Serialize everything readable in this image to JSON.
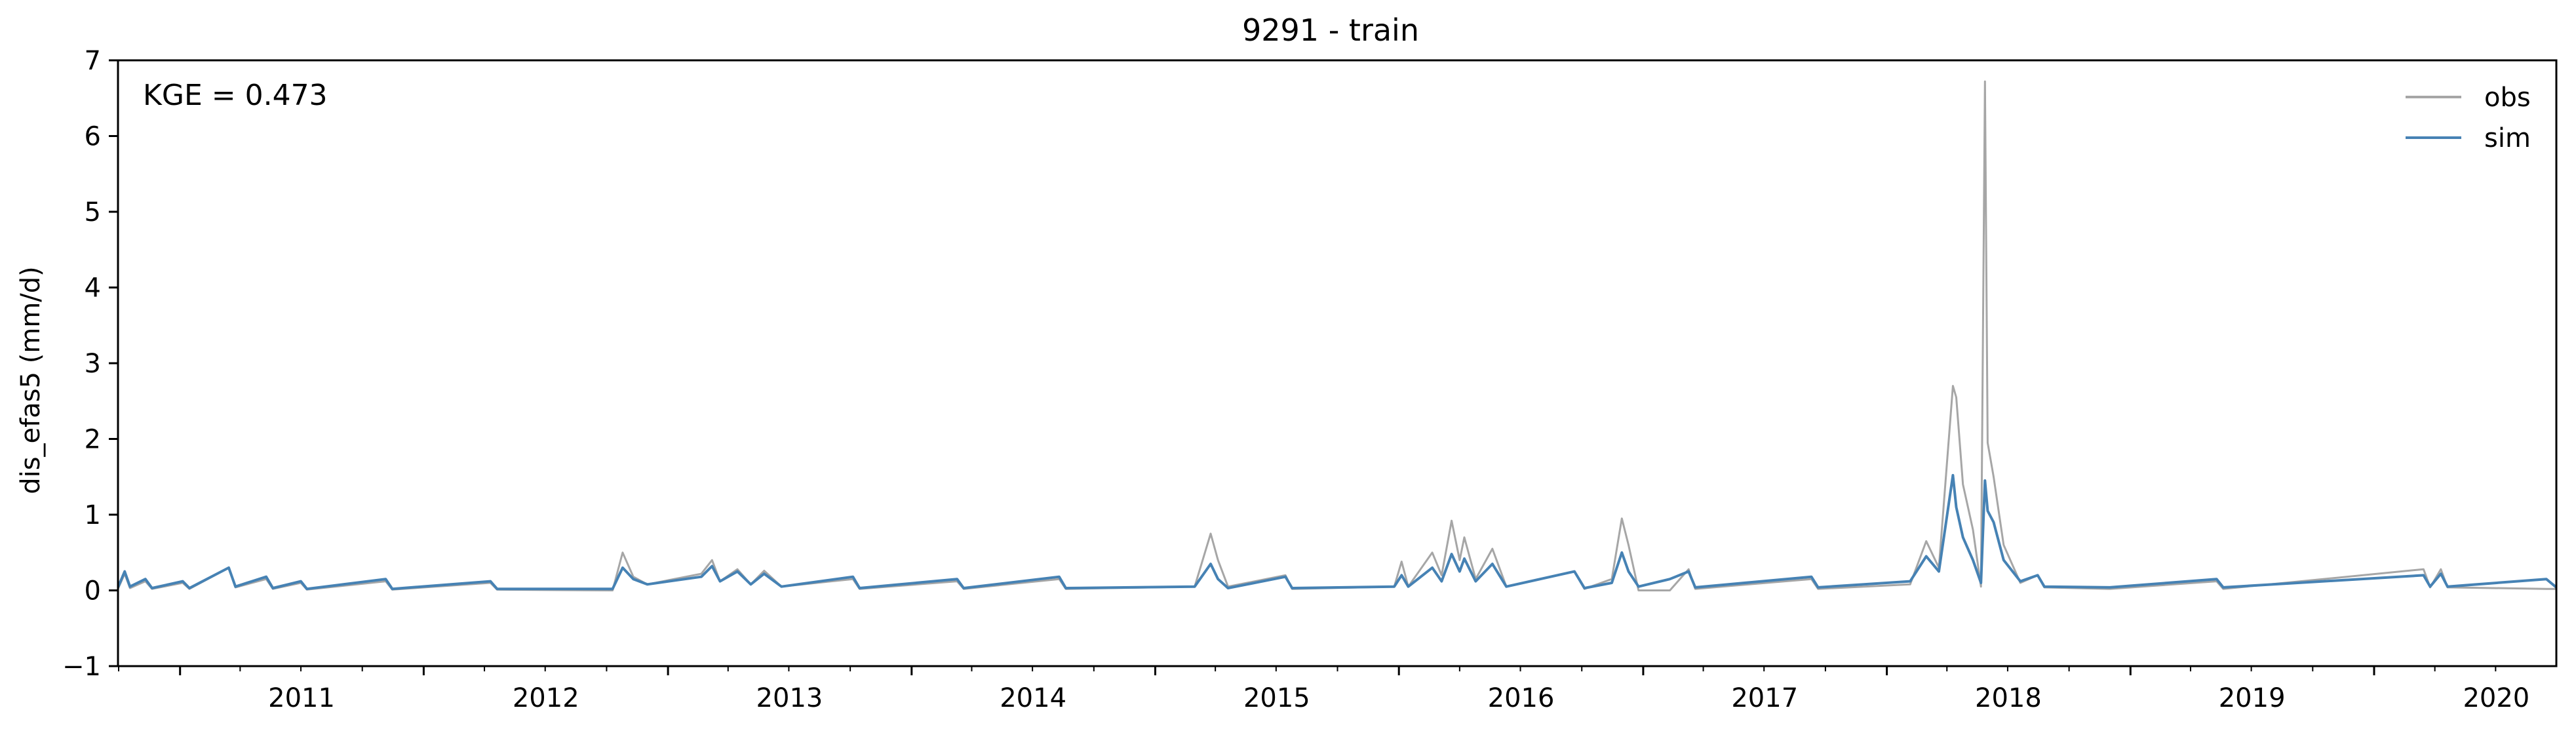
{
  "chart_data": {
    "type": "line",
    "title": "9291 - train",
    "ylabel": "dis_efas5 (mm/d)",
    "xlabel": "",
    "annotation": "KGE = 0.473",
    "xlim": [
      "2010-09-30",
      "2020-09-30"
    ],
    "ylim": [
      -1,
      7
    ],
    "y_ticks": [
      -1,
      0,
      1,
      2,
      3,
      4,
      5,
      6,
      7
    ],
    "x_ticks": [
      "2011",
      "2012",
      "2013",
      "2014",
      "2015",
      "2016",
      "2017",
      "2018",
      "2019",
      "2020"
    ],
    "grid": false,
    "legend": "top-right",
    "colors": {
      "obs": "#a6a6a6",
      "sim": "#4682b4"
    },
    "series": [
      {
        "name": "obs",
        "points": [
          [
            "2010-09-30",
            0.02
          ],
          [
            "2010-10-10",
            0.22
          ],
          [
            "2010-10-18",
            0.03
          ],
          [
            "2010-11-10",
            0.12
          ],
          [
            "2010-11-20",
            0.02
          ],
          [
            "2011-01-05",
            0.1
          ],
          [
            "2011-01-15",
            0.02
          ],
          [
            "2011-03-15",
            0.3
          ],
          [
            "2011-03-25",
            0.04
          ],
          [
            "2011-05-10",
            0.15
          ],
          [
            "2011-05-20",
            0.02
          ],
          [
            "2011-07-01",
            0.1
          ],
          [
            "2011-07-10",
            0.01
          ],
          [
            "2011-11-05",
            0.12
          ],
          [
            "2011-11-15",
            0.01
          ],
          [
            "2012-04-10",
            0.1
          ],
          [
            "2012-04-20",
            0.01
          ],
          [
            "2012-10-10",
            0.0
          ],
          [
            "2012-10-25",
            0.5
          ],
          [
            "2012-11-10",
            0.18
          ],
          [
            "2012-12-01",
            0.08
          ],
          [
            "2013-02-20",
            0.22
          ],
          [
            "2013-03-08",
            0.4
          ],
          [
            "2013-03-20",
            0.12
          ],
          [
            "2013-04-15",
            0.28
          ],
          [
            "2013-05-05",
            0.08
          ],
          [
            "2013-05-25",
            0.26
          ],
          [
            "2013-06-20",
            0.05
          ],
          [
            "2013-10-05",
            0.15
          ],
          [
            "2013-10-15",
            0.02
          ],
          [
            "2014-03-10",
            0.12
          ],
          [
            "2014-03-20",
            0.02
          ],
          [
            "2014-08-10",
            0.15
          ],
          [
            "2014-08-20",
            0.02
          ],
          [
            "2015-03-01",
            0.05
          ],
          [
            "2015-03-25",
            0.75
          ],
          [
            "2015-04-05",
            0.4
          ],
          [
            "2015-04-20",
            0.05
          ],
          [
            "2015-07-15",
            0.2
          ],
          [
            "2015-07-25",
            0.02
          ],
          [
            "2015-12-25",
            0.05
          ],
          [
            "2016-01-05",
            0.38
          ],
          [
            "2016-01-15",
            0.05
          ],
          [
            "2016-02-20",
            0.5
          ],
          [
            "2016-03-05",
            0.2
          ],
          [
            "2016-03-20",
            0.92
          ],
          [
            "2016-04-01",
            0.4
          ],
          [
            "2016-04-08",
            0.7
          ],
          [
            "2016-04-25",
            0.15
          ],
          [
            "2016-05-20",
            0.55
          ],
          [
            "2016-06-10",
            0.05
          ],
          [
            "2016-09-20",
            0.25
          ],
          [
            "2016-10-05",
            0.02
          ],
          [
            "2016-11-15",
            0.15
          ],
          [
            "2016-11-30",
            0.95
          ],
          [
            "2016-12-10",
            0.6
          ],
          [
            "2016-12-25",
            0.0
          ],
          [
            "2017-02-10",
            0.0
          ],
          [
            "2017-03-10",
            0.28
          ],
          [
            "2017-03-20",
            0.02
          ],
          [
            "2017-09-10",
            0.15
          ],
          [
            "2017-09-20",
            0.02
          ],
          [
            "2018-02-05",
            0.08
          ],
          [
            "2018-03-01",
            0.65
          ],
          [
            "2018-03-20",
            0.3
          ],
          [
            "2018-04-10",
            2.7
          ],
          [
            "2018-04-15",
            2.55
          ],
          [
            "2018-04-25",
            1.4
          ],
          [
            "2018-05-10",
            0.8
          ],
          [
            "2018-05-22",
            0.05
          ],
          [
            "2018-05-28",
            6.72
          ],
          [
            "2018-06-01",
            1.95
          ],
          [
            "2018-06-10",
            1.5
          ],
          [
            "2018-06-25",
            0.6
          ],
          [
            "2018-07-20",
            0.1
          ],
          [
            "2018-08-15",
            0.2
          ],
          [
            "2018-08-25",
            0.04
          ],
          [
            "2018-12-01",
            0.02
          ],
          [
            "2019-05-10",
            0.12
          ],
          [
            "2019-05-20",
            0.02
          ],
          [
            "2020-03-15",
            0.28
          ],
          [
            "2020-03-25",
            0.04
          ],
          [
            "2020-04-10",
            0.28
          ],
          [
            "2020-04-20",
            0.04
          ],
          [
            "2020-09-15",
            0.02
          ],
          [
            "2020-09-30",
            0.02
          ]
        ]
      },
      {
        "name": "sim",
        "points": [
          [
            "2010-09-30",
            0.04
          ],
          [
            "2010-10-10",
            0.25
          ],
          [
            "2010-10-18",
            0.05
          ],
          [
            "2010-11-10",
            0.15
          ],
          [
            "2010-11-20",
            0.03
          ],
          [
            "2011-01-05",
            0.12
          ],
          [
            "2011-01-15",
            0.03
          ],
          [
            "2011-03-15",
            0.3
          ],
          [
            "2011-03-25",
            0.05
          ],
          [
            "2011-05-10",
            0.18
          ],
          [
            "2011-05-20",
            0.03
          ],
          [
            "2011-07-01",
            0.12
          ],
          [
            "2011-07-10",
            0.02
          ],
          [
            "2011-11-05",
            0.15
          ],
          [
            "2011-11-15",
            0.02
          ],
          [
            "2012-04-10",
            0.12
          ],
          [
            "2012-04-20",
            0.02
          ],
          [
            "2012-10-10",
            0.02
          ],
          [
            "2012-10-25",
            0.3
          ],
          [
            "2012-11-10",
            0.15
          ],
          [
            "2012-12-01",
            0.08
          ],
          [
            "2013-02-20",
            0.18
          ],
          [
            "2013-03-08",
            0.32
          ],
          [
            "2013-03-20",
            0.12
          ],
          [
            "2013-04-15",
            0.25
          ],
          [
            "2013-05-05",
            0.08
          ],
          [
            "2013-05-25",
            0.22
          ],
          [
            "2013-06-20",
            0.05
          ],
          [
            "2013-10-05",
            0.18
          ],
          [
            "2013-10-15",
            0.03
          ],
          [
            "2014-03-10",
            0.15
          ],
          [
            "2014-03-20",
            0.03
          ],
          [
            "2014-08-10",
            0.18
          ],
          [
            "2014-08-20",
            0.03
          ],
          [
            "2015-03-01",
            0.05
          ],
          [
            "2015-03-25",
            0.35
          ],
          [
            "2015-04-05",
            0.15
          ],
          [
            "2015-04-20",
            0.03
          ],
          [
            "2015-07-15",
            0.18
          ],
          [
            "2015-07-25",
            0.03
          ],
          [
            "2015-12-25",
            0.05
          ],
          [
            "2016-01-05",
            0.2
          ],
          [
            "2016-01-15",
            0.05
          ],
          [
            "2016-02-20",
            0.3
          ],
          [
            "2016-03-05",
            0.12
          ],
          [
            "2016-03-20",
            0.48
          ],
          [
            "2016-04-01",
            0.25
          ],
          [
            "2016-04-08",
            0.42
          ],
          [
            "2016-04-25",
            0.12
          ],
          [
            "2016-05-20",
            0.35
          ],
          [
            "2016-06-10",
            0.05
          ],
          [
            "2016-09-20",
            0.25
          ],
          [
            "2016-10-05",
            0.03
          ],
          [
            "2016-11-15",
            0.1
          ],
          [
            "2016-11-30",
            0.5
          ],
          [
            "2016-12-10",
            0.25
          ],
          [
            "2016-12-25",
            0.05
          ],
          [
            "2017-02-10",
            0.15
          ],
          [
            "2017-03-10",
            0.25
          ],
          [
            "2017-03-20",
            0.04
          ],
          [
            "2017-09-10",
            0.18
          ],
          [
            "2017-09-20",
            0.04
          ],
          [
            "2018-02-05",
            0.12
          ],
          [
            "2018-03-01",
            0.45
          ],
          [
            "2018-03-20",
            0.25
          ],
          [
            "2018-04-10",
            1.52
          ],
          [
            "2018-04-15",
            1.1
          ],
          [
            "2018-04-25",
            0.7
          ],
          [
            "2018-05-10",
            0.4
          ],
          [
            "2018-05-22",
            0.1
          ],
          [
            "2018-05-28",
            1.45
          ],
          [
            "2018-06-01",
            1.05
          ],
          [
            "2018-06-10",
            0.9
          ],
          [
            "2018-06-25",
            0.4
          ],
          [
            "2018-07-20",
            0.12
          ],
          [
            "2018-08-15",
            0.2
          ],
          [
            "2018-08-25",
            0.05
          ],
          [
            "2018-12-01",
            0.04
          ],
          [
            "2019-05-10",
            0.15
          ],
          [
            "2019-05-20",
            0.04
          ],
          [
            "2020-03-15",
            0.2
          ],
          [
            "2020-03-25",
            0.05
          ],
          [
            "2020-04-10",
            0.22
          ],
          [
            "2020-04-20",
            0.05
          ],
          [
            "2020-09-15",
            0.15
          ],
          [
            "2020-09-30",
            0.04
          ]
        ]
      }
    ]
  }
}
